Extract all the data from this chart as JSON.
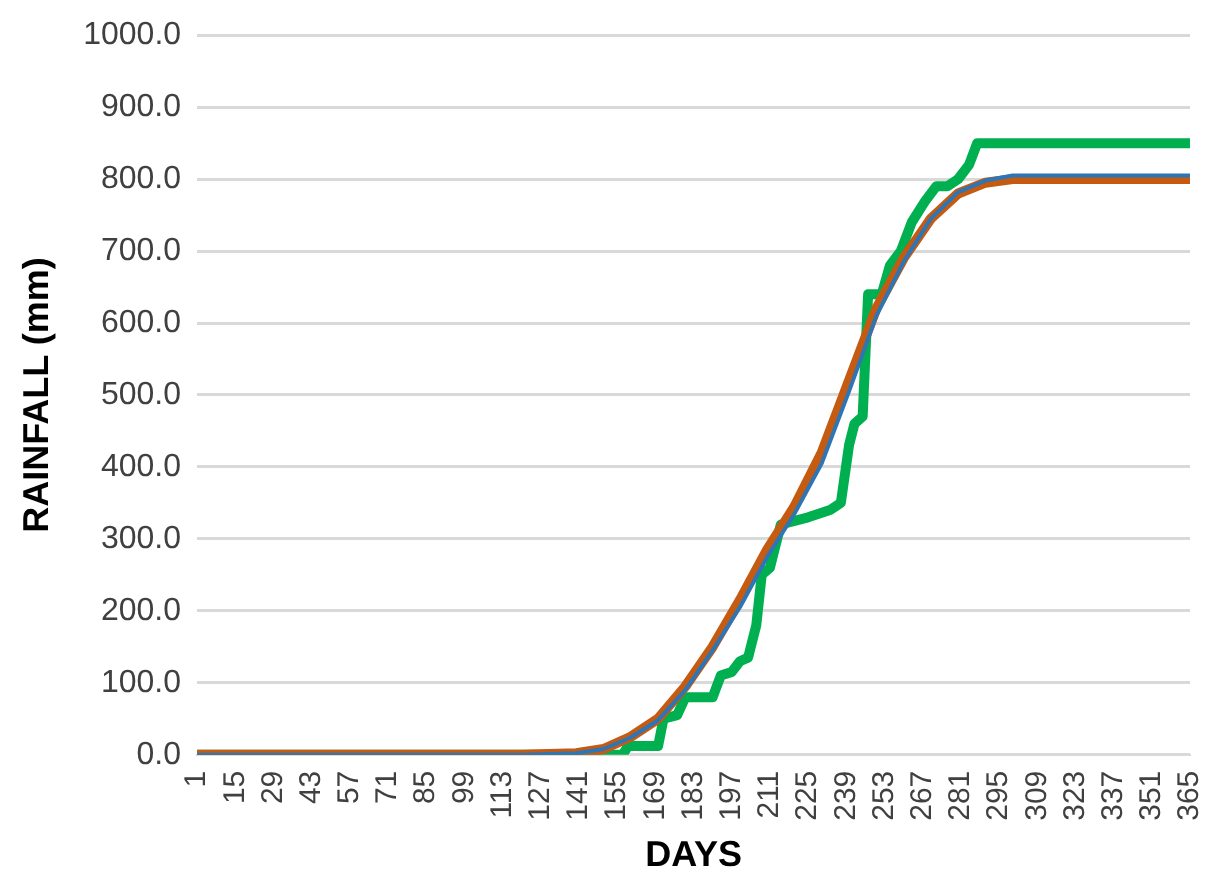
{
  "chart_data": {
    "type": "line",
    "xlabel": "DAYS",
    "ylabel": "RAINFALL (mm)",
    "xlim": [
      1,
      365
    ],
    "xticks": [
      1,
      15,
      29,
      43,
      57,
      71,
      85,
      99,
      113,
      127,
      141,
      155,
      169,
      183,
      197,
      211,
      225,
      239,
      253,
      267,
      281,
      295,
      309,
      323,
      337,
      351,
      365
    ],
    "ylim": [
      0,
      1000
    ],
    "yticks": [
      {
        "value": 0,
        "label": "0.0"
      },
      {
        "value": 100,
        "label": "100.0"
      },
      {
        "value": 200,
        "label": "200.0"
      },
      {
        "value": 300,
        "label": "300.0"
      },
      {
        "value": 400,
        "label": "400.0"
      },
      {
        "value": 500,
        "label": "500.0"
      },
      {
        "value": 600,
        "label": "600.0"
      },
      {
        "value": 700,
        "label": "700.0"
      },
      {
        "value": 800,
        "label": "800.0"
      },
      {
        "value": 900,
        "label": "900.0"
      },
      {
        "value": 1000,
        "label": "1000.0"
      }
    ],
    "grid": "y",
    "legend": false,
    "marker": "none",
    "line_style": "solid",
    "series": [
      {
        "color": "#2e75b6",
        "x": [
          1,
          120,
          140,
          150,
          160,
          170,
          180,
          190,
          200,
          210,
          220,
          230,
          240,
          250,
          260,
          270,
          280,
          290,
          300,
          365
        ],
        "values": [
          0,
          0,
          2,
          8,
          24,
          48,
          90,
          145,
          205,
          275,
          335,
          405,
          505,
          610,
          685,
          745,
          782,
          798,
          805,
          805
        ]
      },
      {
        "color": "#c55a11",
        "x": [
          1,
          120,
          140,
          150,
          160,
          170,
          180,
          190,
          200,
          210,
          220,
          230,
          240,
          250,
          260,
          270,
          280,
          290,
          300,
          365
        ],
        "values": [
          0,
          0,
          2,
          8,
          25,
          50,
          95,
          150,
          215,
          285,
          345,
          420,
          520,
          620,
          690,
          745,
          780,
          795,
          800,
          800
        ]
      },
      {
        "color": "#00b050",
        "x": [
          1,
          157,
          159,
          170,
          172,
          177,
          180,
          190,
          193,
          197,
          200,
          203,
          206,
          208,
          211,
          215,
          225,
          233,
          237,
          240,
          242,
          245,
          247,
          252,
          255,
          259,
          263,
          268,
          272,
          276,
          280,
          284,
          287,
          365
        ],
        "values": [
          0,
          0,
          12,
          12,
          50,
          55,
          80,
          80,
          110,
          115,
          130,
          135,
          180,
          250,
          260,
          320,
          330,
          340,
          350,
          430,
          460,
          470,
          640,
          640,
          680,
          700,
          740,
          770,
          790,
          790,
          800,
          820,
          850,
          850
        ]
      }
    ]
  }
}
